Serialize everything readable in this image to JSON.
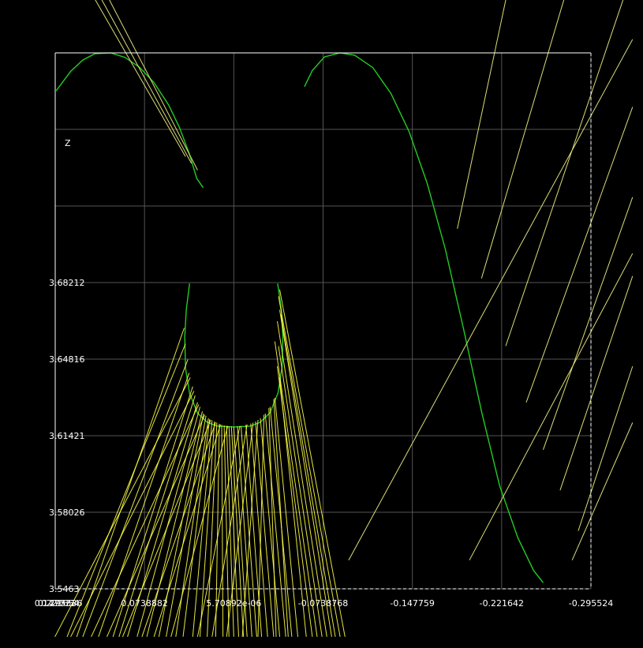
{
  "chart_data": {
    "type": "line",
    "title": "",
    "axis_name": "Z",
    "x_ticks": [
      "0.147771",
      "0.0738882",
      "5.70892e-06",
      "-0.0738768",
      "-0.147759",
      "-0.221642",
      "-0.295524"
    ],
    "y_ticks": [
      "3.5463",
      "3.58026",
      "3.61421",
      "3.64816",
      "3.68212"
    ],
    "x_overlap_labels": [
      "0.221654",
      "0.295536"
    ],
    "xlim": [
      0.147771,
      -0.295524
    ],
    "ylim": [
      3.5463,
      3.784
    ],
    "grid": true,
    "legend": "none",
    "colors": {
      "background": "#000000",
      "grid": "#555555",
      "frame": "#ffffff",
      "curve": "#22cc22",
      "ray": "#ffff44"
    },
    "series": [
      {
        "kind": "curve",
        "points": [
          [
            0.147,
            3.7672
          ],
          [
            0.135,
            3.7758
          ],
          [
            0.125,
            3.7808
          ],
          [
            0.115,
            3.7836
          ],
          [
            0.102,
            3.784
          ],
          [
            0.09,
            3.782
          ],
          [
            0.078,
            3.7776
          ],
          [
            0.066,
            3.7708
          ],
          [
            0.054,
            3.761
          ],
          [
            0.045,
            3.751
          ],
          [
            0.0368,
            3.7392
          ],
          [
            0.0306,
            3.7282
          ],
          [
            0.0253,
            3.7242
          ]
        ]
      },
      {
        "kind": "curve",
        "points": [
          [
            -0.0585,
            3.769
          ],
          [
            -0.065,
            3.7762
          ],
          [
            -0.075,
            3.7822
          ],
          [
            -0.088,
            3.784
          ],
          [
            -0.1,
            3.783
          ],
          [
            -0.115,
            3.7775
          ],
          [
            -0.13,
            3.766
          ],
          [
            -0.145,
            3.7492
          ],
          [
            -0.16,
            3.7262
          ],
          [
            -0.175,
            3.697
          ],
          [
            -0.19,
            3.6618
          ],
          [
            -0.205,
            3.625
          ],
          [
            -0.22,
            3.592
          ],
          [
            -0.235,
            3.569
          ],
          [
            -0.248,
            3.5545
          ],
          [
            -0.256,
            3.549
          ]
        ]
      },
      {
        "kind": "curve",
        "points": [
          [
            0.0366,
            3.6817
          ],
          [
            0.0393,
            3.67
          ],
          [
            0.0406,
            3.658
          ],
          [
            0.0399,
            3.644
          ],
          [
            0.0366,
            3.633
          ],
          [
            0.03,
            3.6242
          ],
          [
            0.022,
            3.6202
          ],
          [
            0.014,
            3.6185
          ],
          [
            0.0,
            3.6181
          ],
          [
            -0.014,
            3.6185
          ],
          [
            -0.022,
            3.6202
          ],
          [
            -0.03,
            3.6244
          ],
          [
            -0.0366,
            3.6332
          ],
          [
            -0.0399,
            3.6446
          ],
          [
            -0.0406,
            3.658
          ],
          [
            -0.0394,
            3.67
          ],
          [
            -0.0363,
            3.6817
          ]
        ]
      }
    ],
    "rays": [
      [
        [
          0.04,
          3.655
        ],
        [
          0.138,
          3.525
        ]
      ],
      [
        [
          0.038,
          3.648
        ],
        [
          0.125,
          3.525
        ]
      ],
      [
        [
          0.037,
          3.642
        ],
        [
          0.112,
          3.525
        ]
      ],
      [
        [
          0.034,
          3.636
        ],
        [
          0.1,
          3.525
        ]
      ],
      [
        [
          0.032,
          3.632
        ],
        [
          0.095,
          3.525
        ]
      ],
      [
        [
          0.03,
          3.629
        ],
        [
          0.088,
          3.525
        ]
      ],
      [
        [
          0.028,
          3.627
        ],
        [
          0.08,
          3.525
        ]
      ],
      [
        [
          0.026,
          3.625
        ],
        [
          0.072,
          3.525
        ]
      ],
      [
        [
          0.025,
          3.624
        ],
        [
          0.062,
          3.525
        ]
      ],
      [
        [
          0.023,
          3.623
        ],
        [
          0.056,
          3.525
        ]
      ],
      [
        [
          0.021,
          3.622
        ],
        [
          0.048,
          3.525
        ]
      ],
      [
        [
          0.02,
          3.6215
        ],
        [
          0.042,
          3.525
        ]
      ],
      [
        [
          0.018,
          3.621
        ],
        [
          0.034,
          3.525
        ]
      ],
      [
        [
          0.016,
          3.6205
        ],
        [
          0.028,
          3.525
        ]
      ],
      [
        [
          0.014,
          3.62
        ],
        [
          0.022,
          3.525
        ]
      ],
      [
        [
          0.012,
          3.6195
        ],
        [
          0.015,
          3.525
        ]
      ],
      [
        [
          0.01,
          3.619
        ],
        [
          0.009,
          3.525
        ]
      ],
      [
        [
          0.008,
          3.6188
        ],
        [
          0.004,
          3.525
        ]
      ],
      [
        [
          0.006,
          3.6186
        ],
        [
          0.0,
          3.525
        ]
      ],
      [
        [
          0.004,
          3.6184
        ],
        [
          -0.004,
          3.525
        ]
      ],
      [
        [
          0.002,
          3.6183
        ],
        [
          -0.008,
          3.525
        ]
      ],
      [
        [
          0.0,
          3.6182
        ],
        [
          -0.011,
          3.525
        ]
      ],
      [
        [
          -0.003,
          3.6183
        ],
        [
          -0.015,
          3.525
        ]
      ],
      [
        [
          -0.006,
          3.6185
        ],
        [
          -0.019,
          3.525
        ]
      ],
      [
        [
          -0.01,
          3.619
        ],
        [
          -0.023,
          3.525
        ]
      ],
      [
        [
          -0.014,
          3.6196
        ],
        [
          -0.028,
          3.525
        ]
      ],
      [
        [
          -0.018,
          3.6205
        ],
        [
          -0.033,
          3.525
        ]
      ],
      [
        [
          -0.022,
          3.622
        ],
        [
          -0.038,
          3.525
        ]
      ],
      [
        [
          -0.026,
          3.624
        ],
        [
          -0.043,
          3.525
        ]
      ],
      [
        [
          -0.03,
          3.627
        ],
        [
          -0.048,
          3.525
        ]
      ],
      [
        [
          -0.034,
          3.631
        ],
        [
          -0.053,
          3.525
        ]
      ],
      [
        [
          -0.038,
          3.64
        ],
        [
          -0.06,
          3.525
        ]
      ],
      [
        [
          -0.036,
          3.645
        ],
        [
          -0.065,
          3.525
        ]
      ],
      [
        [
          -0.034,
          3.656
        ],
        [
          -0.069,
          3.525
        ]
      ],
      [
        [
          -0.037,
          3.654
        ],
        [
          -0.073,
          3.525
        ]
      ],
      [
        [
          -0.036,
          3.665
        ],
        [
          -0.077,
          3.525
        ]
      ],
      [
        [
          -0.038,
          3.67
        ],
        [
          -0.081,
          3.525
        ]
      ],
      [
        [
          -0.039,
          3.668
        ],
        [
          -0.084,
          3.525
        ]
      ],
      [
        [
          -0.037,
          3.676
        ],
        [
          -0.088,
          3.525
        ]
      ],
      [
        [
          -0.038,
          3.679
        ],
        [
          -0.092,
          3.525
        ]
      ],
      [
        [
          0.041,
          3.662
        ],
        [
          0.13,
          3.525
        ]
      ],
      [
        [
          0.036,
          3.64
        ],
        [
          0.148,
          3.525
        ]
      ],
      [
        [
          0.033,
          3.634
        ],
        [
          0.135,
          3.525
        ]
      ],
      [
        [
          0.029,
          3.628
        ],
        [
          0.118,
          3.525
        ]
      ],
      [
        [
          0.024,
          3.6235
        ],
        [
          0.105,
          3.525
        ]
      ],
      [
        [
          0.019,
          3.6212
        ],
        [
          0.092,
          3.525
        ]
      ],
      [
        [
          0.015,
          3.6202
        ],
        [
          0.076,
          3.525
        ]
      ],
      [
        [
          0.011,
          3.6192
        ],
        [
          0.066,
          3.525
        ]
      ],
      [
        [
          0.005,
          3.6185
        ],
        [
          0.052,
          3.525
        ]
      ],
      [
        [
          -0.005,
          3.6185
        ],
        [
          0.03,
          3.525
        ]
      ],
      [
        [
          -0.011,
          3.6192
        ],
        [
          0.018,
          3.525
        ]
      ],
      [
        [
          -0.016,
          3.62
        ],
        [
          0.006,
          3.525
        ]
      ],
      [
        [
          -0.02,
          3.6212
        ],
        [
          -0.007,
          3.525
        ]
      ],
      [
        [
          -0.025,
          3.6235
        ],
        [
          -0.02,
          3.525
        ]
      ],
      [
        [
          -0.029,
          3.6265
        ],
        [
          -0.035,
          3.525
        ]
      ],
      [
        [
          -0.033,
          3.6305
        ],
        [
          -0.045,
          3.525
        ]
      ]
    ],
    "right_rays": [
      [
        [
          0.04,
          3.738
        ],
        [
          0.128,
          3.82
        ]
      ],
      [
        [
          0.035,
          3.735
        ],
        [
          0.122,
          3.82
        ]
      ],
      [
        [
          0.03,
          3.732
        ],
        [
          0.115,
          3.82
        ]
      ],
      [
        [
          -0.185,
          3.706
        ],
        [
          -0.23,
          3.82
        ]
      ],
      [
        [
          -0.205,
          3.684
        ],
        [
          -0.28,
          3.82
        ]
      ],
      [
        [
          -0.225,
          3.654
        ],
        [
          -0.33,
          3.82
        ]
      ],
      [
        [
          -0.242,
          3.629
        ],
        [
          -0.33,
          3.76
        ]
      ],
      [
        [
          -0.256,
          3.608
        ],
        [
          -0.33,
          3.72
        ]
      ],
      [
        [
          -0.27,
          3.59
        ],
        [
          -0.33,
          3.685
        ]
      ],
      [
        [
          -0.285,
          3.572
        ],
        [
          -0.33,
          3.645
        ]
      ],
      [
        [
          -0.195,
          3.559
        ],
        [
          -0.33,
          3.695
        ]
      ],
      [
        [
          -0.28,
          3.559
        ],
        [
          -0.33,
          3.62
        ]
      ],
      [
        [
          -0.095,
          3.559
        ],
        [
          -0.33,
          3.79
        ]
      ]
    ]
  }
}
